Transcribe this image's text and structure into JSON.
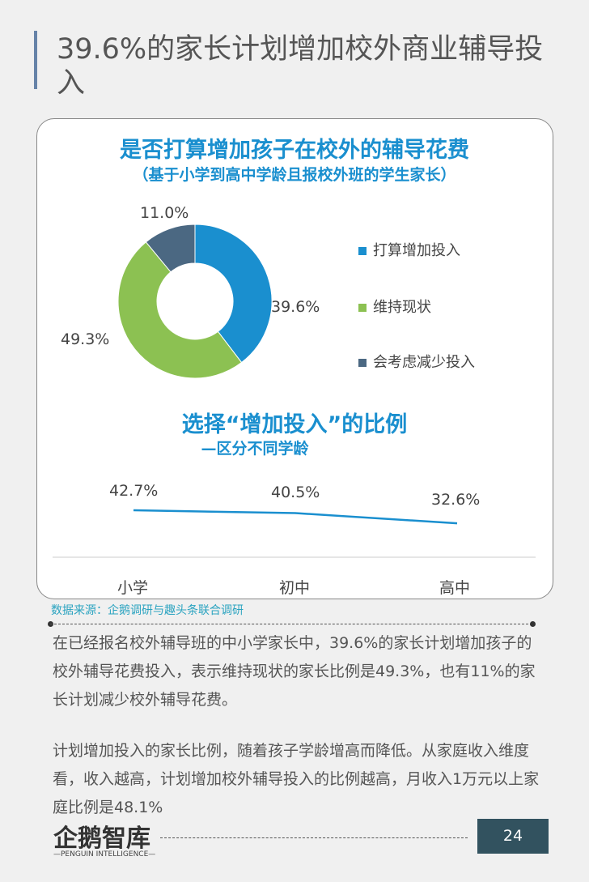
{
  "page": {
    "title": "39.6%的家长计划增加校外商业辅导投入",
    "source": "数据来源：企鹅调研与趣头条联合调研",
    "paragraphs": [
      "在已经报名校外辅导班的中小学家长中，39.6%的家长计划增加孩子的校外辅导花费投入，表示维持现状的家长比例是49.3%，也有11%的家长计划减少校外辅导花费。",
      "计划增加投入的家长比例，随着孩子学龄增高而降低。从家庭收入维度看，收入越高，计划增加校外辅导投入的比例越高，月收入1万元以上家庭比例是48.1%"
    ],
    "page_number": "24",
    "logo": "企鹅智库",
    "logo_sub": "—PENGUIN INTELLIGENCE—"
  },
  "chart_data": [
    {
      "type": "pie",
      "title": "是否打算增加孩子在校外的辅导花费",
      "subtitle": "（基于小学到高中学龄且报校外班的学生家长）",
      "donut": true,
      "categories": [
        "打算增加投入",
        "维持现状",
        "会考虑减少投入"
      ],
      "values": [
        39.6,
        49.3,
        11.0
      ],
      "labels": [
        "39.6%",
        "49.3%",
        "11.0%"
      ],
      "colors": [
        "#1a8fcf",
        "#8cc152",
        "#4b6882"
      ],
      "legend": "right"
    },
    {
      "type": "line",
      "title": "选择“增加投入”的比例",
      "subtitle": "—区分不同学龄",
      "categories": [
        "小学",
        "初中",
        "高中"
      ],
      "values": [
        42.7,
        40.5,
        32.6
      ],
      "labels": [
        "42.7%",
        "40.5%",
        "32.6%"
      ],
      "color": "#1a8fcf"
    }
  ]
}
